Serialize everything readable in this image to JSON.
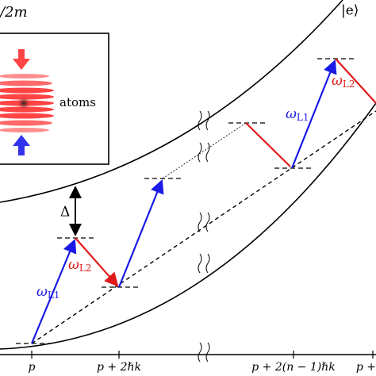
{
  "top_label": "/2m",
  "state_label": "|e⟩",
  "inset": {
    "label": "atoms"
  },
  "detuning": "Δ",
  "transitions": [
    {
      "symbol": "ω",
      "subscript": "L1"
    },
    {
      "symbol": "ω",
      "subscript": "L2"
    },
    {
      "symbol": "ω",
      "subscript": "L1"
    },
    {
      "symbol": "ω",
      "subscript": "L2"
    }
  ],
  "x_labels": [
    "p",
    "p + 2ℏk",
    "p + 2(n − 1)ℏk",
    "p +"
  ]
}
